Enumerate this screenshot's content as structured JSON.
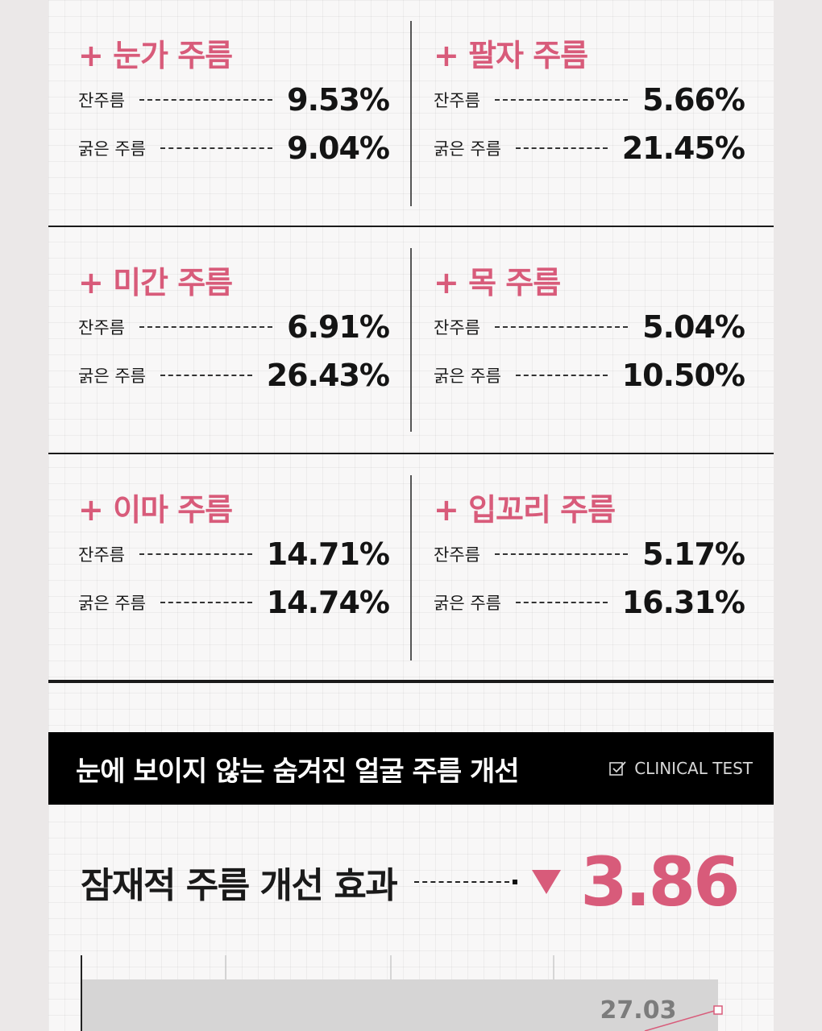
{
  "cells": [
    {
      "title": "+ 눈가 주름",
      "rows": [
        {
          "label": "잔주름",
          "value": "9.53%"
        },
        {
          "label": "굵은 주름",
          "value": "9.04%"
        }
      ]
    },
    {
      "title": "+ 팔자 주름",
      "rows": [
        {
          "label": "잔주름",
          "value": "5.66%"
        },
        {
          "label": "굵은 주름",
          "value": "21.45%"
        }
      ]
    },
    {
      "title": "+ 미간 주름",
      "rows": [
        {
          "label": "잔주름",
          "value": "6.91%"
        },
        {
          "label": "굵은 주름",
          "value": "26.43%"
        }
      ]
    },
    {
      "title": "+ 목 주름",
      "rows": [
        {
          "label": "잔주름",
          "value": "5.04%"
        },
        {
          "label": "굵은 주름",
          "value": "10.50%"
        }
      ]
    },
    {
      "title": "+ 이마 주름",
      "rows": [
        {
          "label": "잔주름",
          "value": "14.71%"
        },
        {
          "label": "굵은 주름",
          "value": "14.74%"
        }
      ]
    },
    {
      "title": "+ 입꼬리 주름",
      "rows": [
        {
          "label": "잔주름",
          "value": "5.17%"
        },
        {
          "label": "굵은 주름",
          "value": "16.31%"
        }
      ]
    }
  ],
  "banner": {
    "title": "눈에 보이지 않는 숨겨진 얼굴 주름 개선",
    "tag": "CLINICAL TEST"
  },
  "effect": {
    "label": "잠재적 주름 개선 효과",
    "value": "3.86"
  },
  "chart": {
    "point_label": "27.03"
  },
  "colors": {
    "accent": "#d85b7a",
    "text": "#1a1a1a",
    "banner_bg": "#000000"
  }
}
